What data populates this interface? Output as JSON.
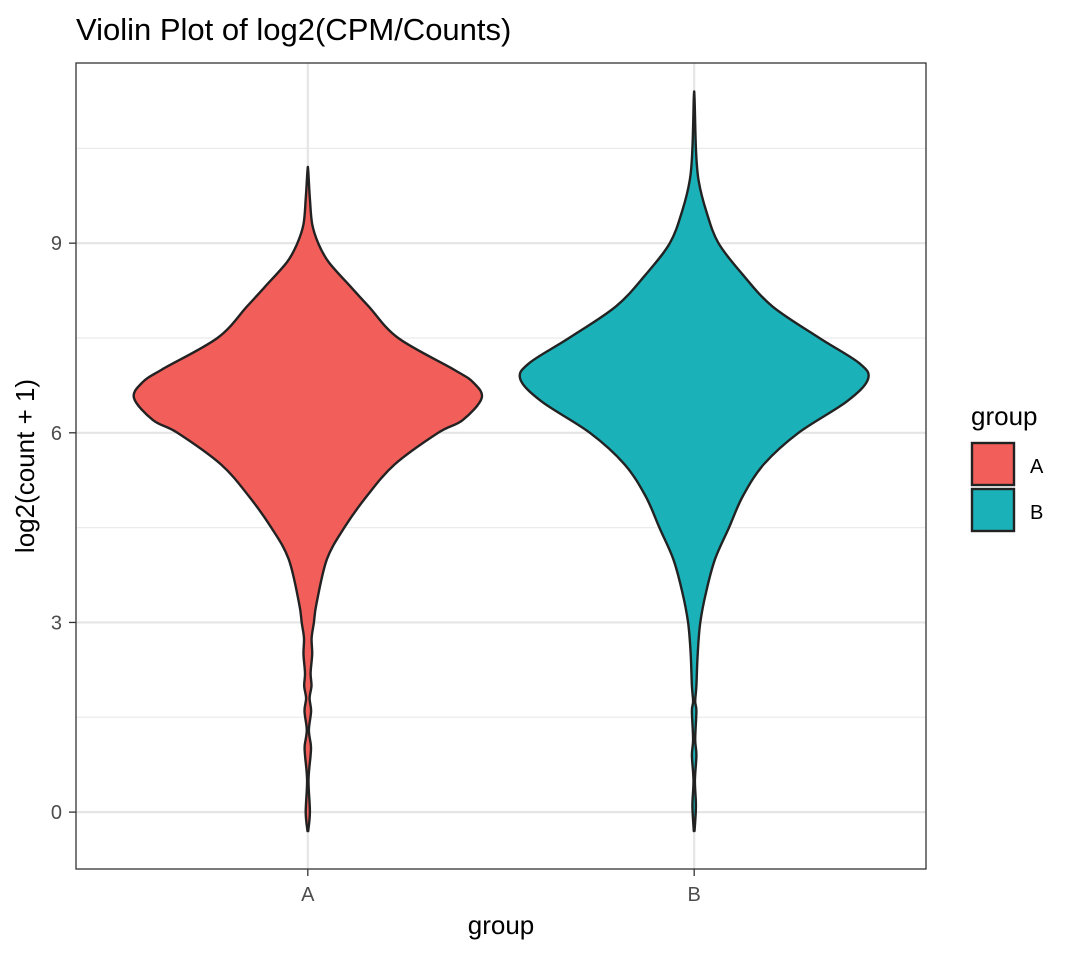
{
  "chart_data": {
    "type": "violin",
    "title": "Violin Plot of log2(CPM/Counts)",
    "xlabel": "group",
    "ylabel": "log2(count + 1)",
    "ylim": [
      -0.9,
      11.85
    ],
    "y_ticks": [
      0,
      3,
      6,
      9
    ],
    "grid": true,
    "categories": [
      "A",
      "B"
    ],
    "legend": {
      "title": "group",
      "placement": "right",
      "entries": [
        {
          "label": "A",
          "color": "#F25E5A"
        },
        {
          "label": "B",
          "color": "#1AB2B8"
        }
      ]
    },
    "series": [
      {
        "category": "A",
        "color": "#F25E5A",
        "y_min": -0.3,
        "y_max": 10.15,
        "density_profile": [
          [
            -0.3,
            0.002
          ],
          [
            0.0,
            0.012
          ],
          [
            0.5,
            0.004
          ],
          [
            0.9,
            0.016
          ],
          [
            1.05,
            0.018
          ],
          [
            1.3,
            0.006
          ],
          [
            1.6,
            0.019
          ],
          [
            1.8,
            0.01
          ],
          [
            2.0,
            0.021
          ],
          [
            2.2,
            0.016
          ],
          [
            2.5,
            0.025
          ],
          [
            2.75,
            0.022
          ],
          [
            3.0,
            0.035
          ],
          [
            3.3,
            0.05
          ],
          [
            4.0,
            0.11
          ],
          [
            4.5,
            0.21
          ],
          [
            5.0,
            0.34
          ],
          [
            5.5,
            0.5
          ],
          [
            6.0,
            0.75
          ],
          [
            6.2,
            0.89
          ],
          [
            6.55,
            1.0
          ],
          [
            6.8,
            0.95
          ],
          [
            7.0,
            0.84
          ],
          [
            7.5,
            0.52
          ],
          [
            8.0,
            0.35
          ],
          [
            8.3,
            0.25
          ],
          [
            8.7,
            0.12
          ],
          [
            9.0,
            0.06
          ],
          [
            9.3,
            0.025
          ],
          [
            9.7,
            0.012
          ],
          [
            10.15,
            0.002
          ]
        ]
      },
      {
        "category": "B",
        "color": "#1AB2B8",
        "y_min": -0.3,
        "y_max": 11.3,
        "density_profile": [
          [
            -0.3,
            0.002
          ],
          [
            0.1,
            0.01
          ],
          [
            0.5,
            0.004
          ],
          [
            0.9,
            0.013
          ],
          [
            1.15,
            0.006
          ],
          [
            1.6,
            0.013
          ],
          [
            1.75,
            0.006
          ],
          [
            2.0,
            0.013
          ],
          [
            2.5,
            0.02
          ],
          [
            3.0,
            0.035
          ],
          [
            3.5,
            0.07
          ],
          [
            4.0,
            0.12
          ],
          [
            4.5,
            0.2
          ],
          [
            5.0,
            0.28
          ],
          [
            5.5,
            0.4
          ],
          [
            6.0,
            0.6
          ],
          [
            6.5,
            0.88
          ],
          [
            6.85,
            1.0
          ],
          [
            7.1,
            0.95
          ],
          [
            7.5,
            0.72
          ],
          [
            8.0,
            0.45
          ],
          [
            8.5,
            0.28
          ],
          [
            9.0,
            0.14
          ],
          [
            9.5,
            0.07
          ],
          [
            10.0,
            0.025
          ],
          [
            10.5,
            0.01
          ],
          [
            11.3,
            0.002
          ]
        ]
      }
    ]
  }
}
